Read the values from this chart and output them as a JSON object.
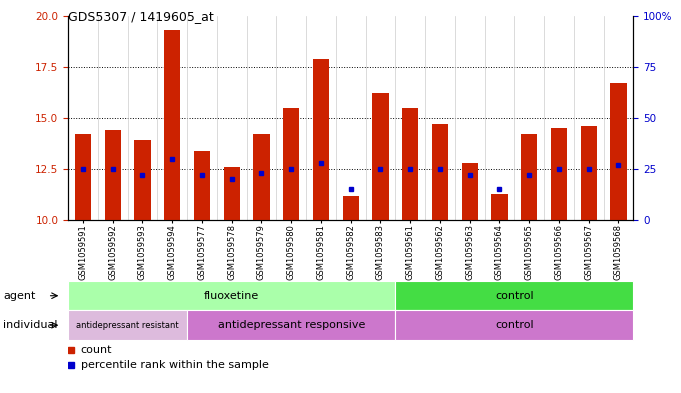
{
  "title": "GDS5307 / 1419605_at",
  "samples": [
    "GSM1059591",
    "GSM1059592",
    "GSM1059593",
    "GSM1059594",
    "GSM1059577",
    "GSM1059578",
    "GSM1059579",
    "GSM1059580",
    "GSM1059581",
    "GSM1059582",
    "GSM1059583",
    "GSM1059561",
    "GSM1059562",
    "GSM1059563",
    "GSM1059564",
    "GSM1059565",
    "GSM1059566",
    "GSM1059567",
    "GSM1059568"
  ],
  "counts": [
    14.2,
    14.4,
    13.9,
    19.3,
    13.4,
    12.6,
    14.2,
    15.5,
    17.9,
    11.2,
    16.2,
    15.5,
    14.7,
    12.8,
    11.3,
    14.2,
    14.5,
    14.6,
    16.7
  ],
  "percentiles": [
    25,
    25,
    22,
    30,
    22,
    20,
    23,
    25,
    28,
    15,
    25,
    25,
    25,
    22,
    15,
    22,
    25,
    25,
    27
  ],
  "ymin": 10,
  "ymax": 20,
  "yticks_left": [
    10,
    12.5,
    15,
    17.5,
    20
  ],
  "yticks_right": [
    0,
    25,
    50,
    75,
    100
  ],
  "bar_color": "#cc2200",
  "dot_color": "#0000cc",
  "bar_width": 0.55,
  "agent_groups": [
    {
      "label": "fluoxetine",
      "start": 0,
      "end": 11,
      "color": "#aaffaa"
    },
    {
      "label": "control",
      "start": 11,
      "end": 19,
      "color": "#44dd44"
    }
  ],
  "individual_groups": [
    {
      "label": "antidepressant resistant",
      "start": 0,
      "end": 4,
      "color": "#eeccee"
    },
    {
      "label": "antidepressant responsive",
      "start": 4,
      "end": 11,
      "color": "#dd88dd"
    },
    {
      "label": "control",
      "start": 11,
      "end": 19,
      "color": "#dd88dd"
    }
  ],
  "grid_color": "#000000",
  "background_color": "#ffffff",
  "tick_label_color_left": "#cc2200",
  "tick_label_color_right": "#0000cc",
  "agent_label": "agent",
  "individual_label": "individual",
  "legend_count_label": "count",
  "legend_percentile_label": "percentile rank within the sample"
}
